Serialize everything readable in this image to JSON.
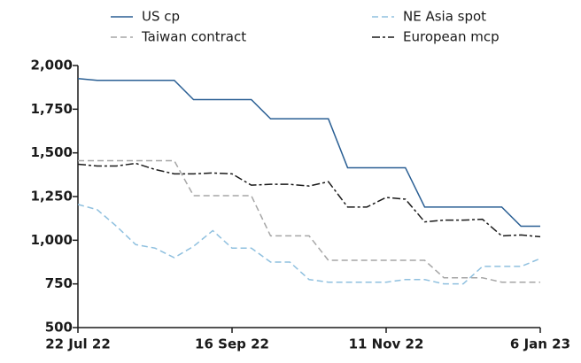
{
  "chart_data": {
    "type": "line",
    "categories": [
      "22 Jul 22",
      null,
      null,
      null,
      null,
      null,
      null,
      null,
      "16 Sep 22",
      null,
      null,
      null,
      null,
      null,
      null,
      null,
      "11 Nov 22",
      null,
      null,
      null,
      null,
      null,
      null,
      null,
      "6 Jan 23"
    ],
    "series": [
      {
        "name": "US cp",
        "color": "#2a5f94",
        "style": "solid",
        "values": [
          1925,
          1915,
          1915,
          1915,
          1915,
          1915,
          1805,
          1805,
          1805,
          1805,
          1695,
          1695,
          1695,
          1695,
          1415,
          1415,
          1415,
          1415,
          1190,
          1190,
          1190,
          1190,
          1190,
          1080,
          1080
        ]
      },
      {
        "name": "NE Asia spot",
        "color": "#8fc0df",
        "style": "dashed",
        "values": [
          1205,
          1175,
          1080,
          975,
          955,
          900,
          965,
          1055,
          955,
          955,
          875,
          875,
          775,
          760,
          760,
          760,
          760,
          775,
          775,
          750,
          750,
          850,
          850,
          850,
          895
        ]
      },
      {
        "name": "Taiwan contract",
        "color": "#a6a6a6",
        "style": "dashed",
        "values": [
          1455,
          1455,
          1455,
          1455,
          1455,
          1455,
          1255,
          1255,
          1255,
          1255,
          1025,
          1025,
          1025,
          885,
          885,
          885,
          885,
          885,
          885,
          785,
          785,
          785,
          760,
          760,
          760
        ]
      },
      {
        "name": "European mcp",
        "color": "#1a1a1a",
        "style": "dashdot",
        "values": [
          1435,
          1425,
          1425,
          1440,
          1405,
          1380,
          1380,
          1385,
          1380,
          1315,
          1320,
          1320,
          1310,
          1335,
          1190,
          1190,
          1245,
          1235,
          1105,
          1115,
          1115,
          1120,
          1025,
          1030,
          1020
        ]
      }
    ],
    "ylim": [
      500,
      2000
    ],
    "yticks": [
      500,
      {
        "value": 750,
        "label": "750"
      },
      {
        "value": 1000,
        "label": "1,000"
      },
      {
        "value": 1250,
        "label": "1,250"
      },
      {
        "value": 1500,
        "label": "1,500"
      },
      {
        "value": 1750,
        "label": "1,750"
      },
      {
        "value": 2000,
        "label": "2,000"
      }
    ],
    "grid": false
  }
}
